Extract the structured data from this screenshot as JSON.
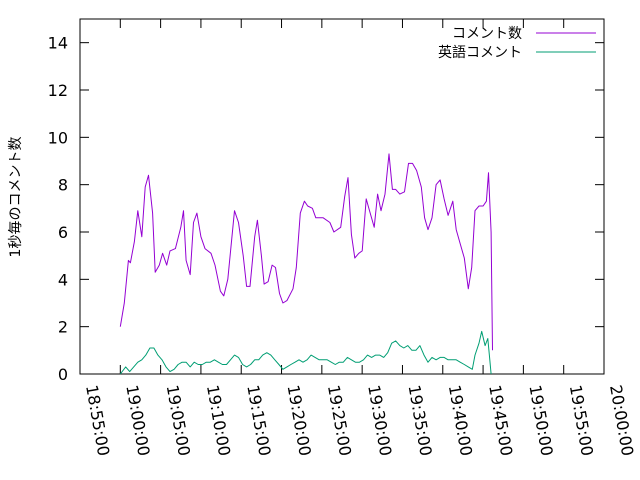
{
  "chart_data": {
    "type": "line",
    "title": "",
    "xlabel": "",
    "ylabel": "1秒毎のコメント数",
    "xlim": [
      "18:55:00",
      "20:00:00"
    ],
    "ylim": [
      0,
      15
    ],
    "xticks": [
      "18:55:00",
      "19:00:00",
      "19:05:00",
      "19:10:00",
      "19:15:00",
      "19:20:00",
      "19:25:00",
      "19:30:00",
      "19:35:00",
      "19:40:00",
      "19:45:00",
      "19:50:00",
      "19:55:00",
      "20:00:00"
    ],
    "yticks": [
      0,
      2,
      4,
      6,
      8,
      10,
      12,
      14
    ],
    "grid": false,
    "legend_position": "top-right",
    "series": [
      {
        "name": "コメント数",
        "color": "#9400d3",
        "points": [
          [
            "19:00:00",
            2.0
          ],
          [
            "19:00:30",
            3.0
          ],
          [
            "19:01:00",
            4.8
          ],
          [
            "19:01:15",
            4.7
          ],
          [
            "19:01:45",
            5.6
          ],
          [
            "19:02:10",
            6.9
          ],
          [
            "19:02:40",
            5.8
          ],
          [
            "19:03:05",
            7.9
          ],
          [
            "19:03:30",
            8.4
          ],
          [
            "19:04:00",
            6.8
          ],
          [
            "19:04:20",
            4.3
          ],
          [
            "19:04:50",
            4.6
          ],
          [
            "19:05:15",
            5.1
          ],
          [
            "19:05:45",
            4.6
          ],
          [
            "19:06:10",
            5.2
          ],
          [
            "19:06:50",
            5.3
          ],
          [
            "19:07:30",
            6.2
          ],
          [
            "19:07:50",
            6.9
          ],
          [
            "19:08:10",
            4.8
          ],
          [
            "19:08:40",
            4.2
          ],
          [
            "19:09:05",
            6.4
          ],
          [
            "19:09:30",
            6.8
          ],
          [
            "19:10:00",
            5.8
          ],
          [
            "19:10:30",
            5.3
          ],
          [
            "19:11:15",
            5.1
          ],
          [
            "19:11:45",
            4.6
          ],
          [
            "19:12:25",
            3.5
          ],
          [
            "19:12:50",
            3.3
          ],
          [
            "19:13:20",
            4.0
          ],
          [
            "19:14:10",
            6.9
          ],
          [
            "19:14:40",
            6.4
          ],
          [
            "19:15:15",
            5.0
          ],
          [
            "19:15:40",
            3.7
          ],
          [
            "19:16:05",
            3.7
          ],
          [
            "19:16:40",
            5.8
          ],
          [
            "19:17:00",
            6.5
          ],
          [
            "19:17:30",
            5.0
          ],
          [
            "19:17:50",
            3.8
          ],
          [
            "19:18:20",
            3.9
          ],
          [
            "19:18:50",
            4.6
          ],
          [
            "19:19:15",
            4.5
          ],
          [
            "19:19:45",
            3.4
          ],
          [
            "19:20:10",
            3.0
          ],
          [
            "19:20:40",
            3.1
          ],
          [
            "19:21:25",
            3.6
          ],
          [
            "19:21:50",
            4.5
          ],
          [
            "19:22:20",
            6.8
          ],
          [
            "19:22:50",
            7.3
          ],
          [
            "19:23:15",
            7.1
          ],
          [
            "19:23:50",
            7.0
          ],
          [
            "19:24:15",
            6.6
          ],
          [
            "19:25:10",
            6.6
          ],
          [
            "19:26:00",
            6.4
          ],
          [
            "19:26:30",
            6.0
          ],
          [
            "19:27:20",
            6.2
          ],
          [
            "19:27:50",
            7.5
          ],
          [
            "19:28:15",
            8.3
          ],
          [
            "19:28:40",
            5.9
          ],
          [
            "19:29:05",
            4.9
          ],
          [
            "19:29:35",
            5.1
          ],
          [
            "19:30:00",
            5.2
          ],
          [
            "19:30:30",
            7.4
          ],
          [
            "19:31:00",
            6.8
          ],
          [
            "19:31:30",
            6.2
          ],
          [
            "19:31:55",
            7.6
          ],
          [
            "19:32:20",
            6.9
          ],
          [
            "19:32:50",
            7.6
          ],
          [
            "19:33:20",
            9.3
          ],
          [
            "19:33:45",
            7.8
          ],
          [
            "19:34:10",
            7.8
          ],
          [
            "19:34:40",
            7.6
          ],
          [
            "19:35:15",
            7.7
          ],
          [
            "19:35:45",
            8.9
          ],
          [
            "19:36:15",
            8.9
          ],
          [
            "19:36:45",
            8.6
          ],
          [
            "19:37:20",
            7.9
          ],
          [
            "19:37:45",
            6.6
          ],
          [
            "19:38:10",
            6.1
          ],
          [
            "19:38:40",
            6.6
          ],
          [
            "19:39:10",
            8.0
          ],
          [
            "19:39:40",
            8.2
          ],
          [
            "19:40:10",
            7.4
          ],
          [
            "19:40:40",
            6.7
          ],
          [
            "19:41:15",
            7.3
          ],
          [
            "19:41:40",
            6.1
          ],
          [
            "19:42:10",
            5.5
          ],
          [
            "19:42:40",
            4.9
          ],
          [
            "19:43:10",
            3.6
          ],
          [
            "19:43:35",
            4.5
          ],
          [
            "19:44:00",
            6.9
          ],
          [
            "19:44:30",
            7.1
          ],
          [
            "19:45:00",
            7.1
          ],
          [
            "19:45:25",
            7.3
          ],
          [
            "19:45:40",
            8.5
          ],
          [
            "19:46:00",
            6.0
          ],
          [
            "19:46:10",
            1.0
          ]
        ]
      },
      {
        "name": "英語コメント",
        "color": "#009e73",
        "points": [
          [
            "19:00:00",
            0.0
          ],
          [
            "19:00:40",
            0.3
          ],
          [
            "19:01:10",
            0.1
          ],
          [
            "19:01:40",
            0.3
          ],
          [
            "19:02:10",
            0.5
          ],
          [
            "19:02:40",
            0.6
          ],
          [
            "19:03:10",
            0.8
          ],
          [
            "19:03:40",
            1.1
          ],
          [
            "19:04:10",
            1.1
          ],
          [
            "19:04:40",
            0.8
          ],
          [
            "19:05:10",
            0.6
          ],
          [
            "19:05:40",
            0.3
          ],
          [
            "19:06:10",
            0.1
          ],
          [
            "19:06:40",
            0.2
          ],
          [
            "19:07:10",
            0.4
          ],
          [
            "19:07:40",
            0.5
          ],
          [
            "19:08:10",
            0.5
          ],
          [
            "19:08:40",
            0.3
          ],
          [
            "19:09:10",
            0.5
          ],
          [
            "19:09:40",
            0.4
          ],
          [
            "19:10:10",
            0.4
          ],
          [
            "19:10:40",
            0.5
          ],
          [
            "19:11:10",
            0.5
          ],
          [
            "19:11:40",
            0.6
          ],
          [
            "19:12:10",
            0.5
          ],
          [
            "19:12:40",
            0.4
          ],
          [
            "19:13:10",
            0.4
          ],
          [
            "19:13:40",
            0.6
          ],
          [
            "19:14:10",
            0.8
          ],
          [
            "19:14:40",
            0.7
          ],
          [
            "19:15:10",
            0.4
          ],
          [
            "19:15:40",
            0.3
          ],
          [
            "19:16:10",
            0.4
          ],
          [
            "19:16:40",
            0.6
          ],
          [
            "19:17:10",
            0.6
          ],
          [
            "19:17:40",
            0.8
          ],
          [
            "19:18:10",
            0.9
          ],
          [
            "19:18:40",
            0.8
          ],
          [
            "19:19:10",
            0.6
          ],
          [
            "19:19:40",
            0.4
          ],
          [
            "19:20:10",
            0.2
          ],
          [
            "19:20:40",
            0.3
          ],
          [
            "19:21:10",
            0.4
          ],
          [
            "19:21:40",
            0.5
          ],
          [
            "19:22:10",
            0.6
          ],
          [
            "19:22:40",
            0.5
          ],
          [
            "19:23:10",
            0.6
          ],
          [
            "19:23:40",
            0.8
          ],
          [
            "19:24:10",
            0.7
          ],
          [
            "19:24:40",
            0.6
          ],
          [
            "19:25:10",
            0.6
          ],
          [
            "19:25:40",
            0.6
          ],
          [
            "19:26:10",
            0.5
          ],
          [
            "19:26:40",
            0.4
          ],
          [
            "19:27:10",
            0.5
          ],
          [
            "19:27:40",
            0.5
          ],
          [
            "19:28:10",
            0.7
          ],
          [
            "19:28:40",
            0.6
          ],
          [
            "19:29:10",
            0.5
          ],
          [
            "19:29:40",
            0.5
          ],
          [
            "19:30:10",
            0.6
          ],
          [
            "19:30:40",
            0.8
          ],
          [
            "19:31:10",
            0.7
          ],
          [
            "19:31:40",
            0.8
          ],
          [
            "19:32:10",
            0.8
          ],
          [
            "19:32:40",
            0.7
          ],
          [
            "19:33:10",
            0.9
          ],
          [
            "19:33:40",
            1.3
          ],
          [
            "19:34:10",
            1.4
          ],
          [
            "19:34:40",
            1.2
          ],
          [
            "19:35:10",
            1.1
          ],
          [
            "19:35:40",
            1.2
          ],
          [
            "19:36:10",
            1.0
          ],
          [
            "19:36:40",
            1.0
          ],
          [
            "19:37:10",
            1.2
          ],
          [
            "19:37:40",
            0.8
          ],
          [
            "19:38:10",
            0.5
          ],
          [
            "19:38:40",
            0.7
          ],
          [
            "19:39:10",
            0.6
          ],
          [
            "19:39:40",
            0.7
          ],
          [
            "19:40:10",
            0.7
          ],
          [
            "19:40:40",
            0.6
          ],
          [
            "19:41:10",
            0.6
          ],
          [
            "19:41:40",
            0.6
          ],
          [
            "19:42:10",
            0.5
          ],
          [
            "19:42:40",
            0.4
          ],
          [
            "19:43:10",
            0.3
          ],
          [
            "19:43:40",
            0.2
          ],
          [
            "19:44:00",
            0.8
          ],
          [
            "19:44:30",
            1.3
          ],
          [
            "19:44:50",
            1.8
          ],
          [
            "19:45:15",
            1.2
          ],
          [
            "19:45:35",
            1.5
          ],
          [
            "19:45:50",
            0.6
          ],
          [
            "19:46:00",
            0.0
          ]
        ]
      }
    ]
  }
}
